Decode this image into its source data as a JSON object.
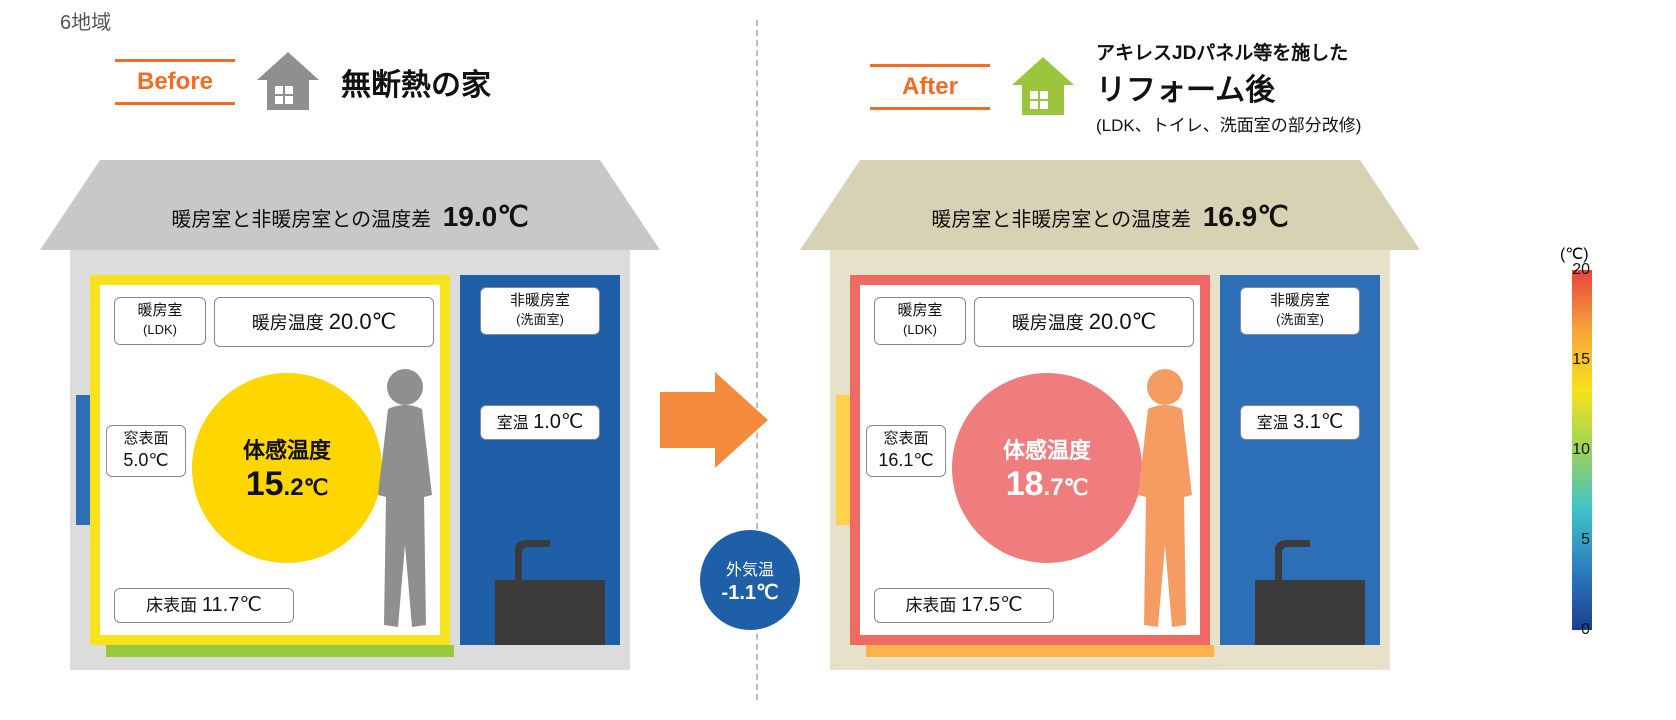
{
  "region_label": "6地域",
  "accent_color": "#f26c23",
  "before": {
    "ba_label": "Before",
    "ba_color": "#f26c23",
    "icon_color": "#8f8f8f",
    "title": "無断熱の家",
    "roof_color": "#c8c8c8",
    "body_color": "#dcdcdc",
    "tempdiff_label": "暖房室と非暖房室との温度差",
    "tempdiff_value": "19.0℃",
    "heated": {
      "border_color": "#f7e21b",
      "room_label": "暖房室",
      "room_sub": "(LDK)",
      "heating_temp_label": "暖房温度",
      "heating_temp_value": "20.0℃",
      "window_label": "窓表面",
      "window_value": "5.0℃",
      "window_strip_color": "#2d6fb7",
      "felt_label": "体感温度",
      "felt_value_int": "15",
      "felt_value_dec": ".2",
      "felt_unit": "℃",
      "felt_circle_color": "#ffd600",
      "floor_label": "床表面",
      "floor_value": "11.7℃",
      "floor_strip_color": "#97c93d",
      "silhouette_color": "#8f8f8f"
    },
    "unheated": {
      "fill_color": "#1f5fa8",
      "room_label": "非暖房室",
      "room_sub": "(洗面室)",
      "roomtemp_label": "室温",
      "roomtemp_value": "1.0℃",
      "sink_color": "#3b3b3b"
    }
  },
  "after": {
    "ba_label": "After",
    "ba_color": "#f26c23",
    "icon_color": "#9bc53d",
    "title": "リフォーム後",
    "super": "アキレスJDパネル等を施した",
    "sub": "(LDK、トイレ、洗面室の部分改修)",
    "roof_color": "#d8d2b4",
    "body_color": "#e6e1c8",
    "tempdiff_label": "暖房室と非暖房室との温度差",
    "tempdiff_value": "16.9℃",
    "heated": {
      "border_color": "#ef6a63",
      "room_label": "暖房室",
      "room_sub": "(LDK)",
      "heating_temp_label": "暖房温度",
      "heating_temp_value": "20.0℃",
      "window_label": "窓表面",
      "window_value": "16.1℃",
      "window_strip_color": "#ffd24a",
      "felt_label": "体感温度",
      "felt_value_int": "18",
      "felt_value_dec": ".7",
      "felt_unit": "℃",
      "felt_circle_color": "#ef7d7d",
      "floor_label": "床表面",
      "floor_value": "17.5℃",
      "floor_strip_color": "#ffb14a",
      "silhouette_color": "#f59c63"
    },
    "unheated": {
      "fill_color": "#2d6fb7",
      "room_label": "非暖房室",
      "room_sub": "(洗面室)",
      "roomtemp_label": "室温",
      "roomtemp_value": "3.1℃",
      "sink_color": "#3b3b3b"
    }
  },
  "outside": {
    "label": "外気温",
    "value": "-1.1℃",
    "color": "#1f5fa8"
  },
  "arrow_color": "#f58a3c",
  "scale": {
    "unit": "(℃)",
    "ticks": [
      "20",
      "15",
      "10",
      "5",
      "0"
    ],
    "gradient": [
      "#e8443b",
      "#f7a33c",
      "#f7e21b",
      "#9bd35a",
      "#3fc3c9",
      "#2d7cc0",
      "#1a3f8f"
    ]
  },
  "layout": {
    "house_w": 610,
    "house_h": 500,
    "roof_h": 80,
    "heated_w": 400,
    "unheated_w": 190,
    "room_h": 370,
    "circle_d": 190
  }
}
